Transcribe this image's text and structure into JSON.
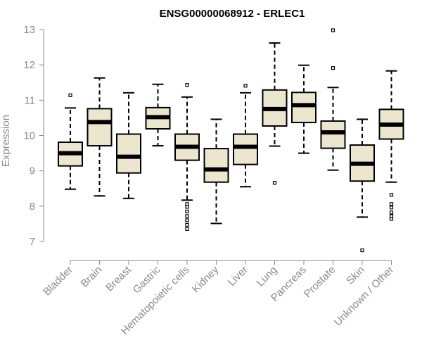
{
  "chart_data": {
    "type": "boxplot",
    "title": "ENSG00000068912 - ERLEC1",
    "xlabel": "",
    "ylabel": "Expression",
    "ylim": [
      6.7,
      13.05
    ],
    "yticks": [
      7,
      8,
      9,
      10,
      11,
      12,
      13
    ],
    "box_fill": "#ede6cf",
    "categories": [
      "Bladder",
      "Brain",
      "Breast",
      "Gastric",
      "Hematopoietic cells",
      "Kidney",
      "Liver",
      "Lung",
      "Pancreas",
      "Prostate",
      "Skin",
      "Unknown / Other"
    ],
    "boxes": [
      {
        "category": "Bladder",
        "whisker_low": 8.48,
        "q1": 9.14,
        "median": 9.5,
        "q3": 9.81,
        "whisker_high": 10.78,
        "outliers": [
          11.14
        ]
      },
      {
        "category": "Brain",
        "whisker_low": 8.29,
        "q1": 9.71,
        "median": 10.38,
        "q3": 10.76,
        "whisker_high": 11.63,
        "outliers": []
      },
      {
        "category": "Breast",
        "whisker_low": 8.22,
        "q1": 8.94,
        "median": 9.4,
        "q3": 10.04,
        "whisker_high": 11.21,
        "outliers": []
      },
      {
        "category": "Gastric",
        "whisker_low": 9.71,
        "q1": 10.19,
        "median": 10.52,
        "q3": 10.79,
        "whisker_high": 11.45,
        "outliers": []
      },
      {
        "category": "Hematopoietic cells",
        "whisker_low": 8.17,
        "q1": 9.3,
        "median": 9.68,
        "q3": 10.04,
        "whisker_high": 11.09,
        "outliers": [
          11.43,
          8.06,
          7.98,
          7.85,
          7.72,
          7.6,
          7.47,
          7.35
        ]
      },
      {
        "category": "Kidney",
        "whisker_low": 7.51,
        "q1": 8.68,
        "median": 9.04,
        "q3": 9.63,
        "whisker_high": 10.46,
        "outliers": []
      },
      {
        "category": "Liver",
        "whisker_low": 8.55,
        "q1": 9.18,
        "median": 9.68,
        "q3": 10.04,
        "whisker_high": 11.21,
        "outliers": [
          11.41
        ]
      },
      {
        "category": "Lung",
        "whisker_low": 9.7,
        "q1": 10.27,
        "median": 10.75,
        "q3": 11.29,
        "whisker_high": 12.62,
        "outliers": [
          8.66
        ]
      },
      {
        "category": "Pancreas",
        "whisker_low": 9.5,
        "q1": 10.37,
        "median": 10.86,
        "q3": 11.22,
        "whisker_high": 11.99,
        "outliers": []
      },
      {
        "category": "Prostate",
        "whisker_low": 9.02,
        "q1": 9.64,
        "median": 10.09,
        "q3": 10.41,
        "whisker_high": 11.36,
        "outliers": [
          12.98,
          11.91
        ]
      },
      {
        "category": "Skin",
        "whisker_low": 7.69,
        "q1": 8.71,
        "median": 9.2,
        "q3": 9.73,
        "whisker_high": 10.46,
        "outliers": [
          6.75
        ]
      },
      {
        "category": "Unknown / Other",
        "whisker_low": 8.68,
        "q1": 9.9,
        "median": 10.31,
        "q3": 10.74,
        "whisker_high": 11.83,
        "outliers": [
          8.32,
          8.06,
          7.96,
          7.82,
          7.72,
          7.64
        ]
      }
    ]
  }
}
